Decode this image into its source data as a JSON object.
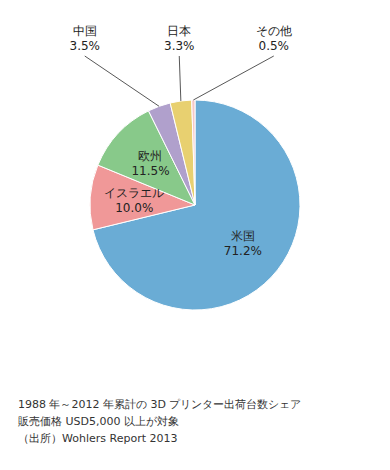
{
  "chart_data": {
    "type": "pie",
    "categories": [
      "米国",
      "イスラエル",
      "欧州",
      "中国",
      "日本",
      "その他"
    ],
    "values": [
      71.2,
      10.0,
      11.5,
      3.5,
      3.3,
      0.5
    ],
    "value_labels": [
      "71.2%",
      "10.0%",
      "11.5%",
      "3.5%",
      "3.3%",
      "0.5%"
    ],
    "colors": [
      "#6aacd5",
      "#f09898",
      "#88c98a",
      "#b0a0cc",
      "#e8d070",
      "#f5c8c8"
    ],
    "data_labels": true,
    "annotations": [
      "1988 年～2012 年累計の 3D プリンター出荷台数シェア",
      "販売価格 USD5,000 以上が対象",
      "（出所）Wohlers Report 2013"
    ]
  }
}
